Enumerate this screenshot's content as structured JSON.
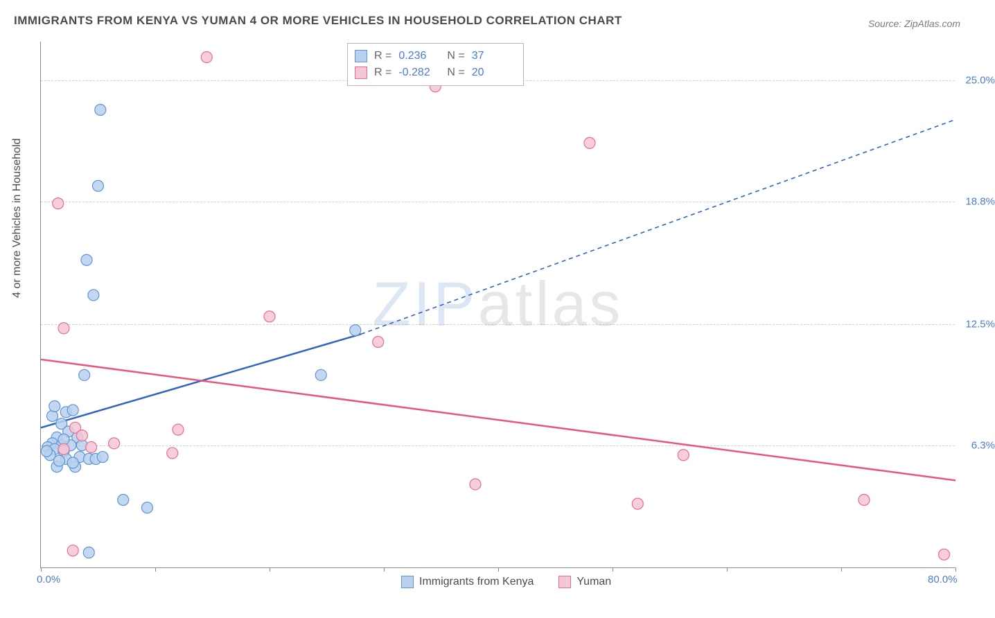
{
  "title": "IMMIGRANTS FROM KENYA VS YUMAN 4 OR MORE VEHICLES IN HOUSEHOLD CORRELATION CHART",
  "source": "Source: ZipAtlas.com",
  "y_axis_title": "4 or more Vehicles in Household",
  "watermark_a": "ZIP",
  "watermark_b": "atlas",
  "chart": {
    "type": "scatter",
    "background_color": "#ffffff",
    "grid_color": "#cfcfcf",
    "axis_color": "#888888",
    "label_color": "#4b7bd6",
    "title_color": "#4a4a4a",
    "title_fontsize": 17,
    "axis_fontsize": 15,
    "xlim": [
      0,
      80
    ],
    "ylim": [
      0,
      27
    ],
    "x_ticks": [
      0,
      10,
      20,
      30,
      40,
      50,
      60,
      70,
      80
    ],
    "x_tick_labels": {
      "0": "0.0%",
      "80": "80.0%"
    },
    "y_ticks": [
      6.3,
      12.5,
      18.8,
      25.0
    ],
    "y_tick_labels": [
      "6.3%",
      "12.5%",
      "18.8%",
      "25.0%"
    ],
    "point_radius": 8,
    "point_stroke_width": 1.2,
    "line_width": 2.5,
    "dash_pattern": "6 5",
    "series": [
      {
        "name": "Immigrants from Kenya",
        "fill": "#b9d1ed",
        "stroke": "#5c94d6",
        "line_color": "#2f64c2",
        "R": "0.236",
        "N": "37",
        "trend_solid": {
          "x1": 0,
          "y1": 7.2,
          "x2": 28,
          "y2": 12.0
        },
        "trend_dashed": {
          "x1": 28,
          "y1": 12.0,
          "x2": 80,
          "y2": 23.0
        },
        "points": [
          {
            "x": 5.2,
            "y": 23.5
          },
          {
            "x": 5.0,
            "y": 19.6
          },
          {
            "x": 4.0,
            "y": 15.8
          },
          {
            "x": 4.6,
            "y": 14.0
          },
          {
            "x": 3.8,
            "y": 9.9
          },
          {
            "x": 27.5,
            "y": 12.2
          },
          {
            "x": 24.5,
            "y": 9.9
          },
          {
            "x": 2.2,
            "y": 8.0
          },
          {
            "x": 2.8,
            "y": 8.1
          },
          {
            "x": 1.8,
            "y": 7.4
          },
          {
            "x": 2.4,
            "y": 7.0
          },
          {
            "x": 1.4,
            "y": 6.7
          },
          {
            "x": 3.2,
            "y": 6.7
          },
          {
            "x": 1.0,
            "y": 6.4
          },
          {
            "x": 1.8,
            "y": 6.3
          },
          {
            "x": 2.6,
            "y": 6.3
          },
          {
            "x": 0.6,
            "y": 6.2
          },
          {
            "x": 1.2,
            "y": 6.1
          },
          {
            "x": 2.0,
            "y": 6.0
          },
          {
            "x": 2.2,
            "y": 5.6
          },
          {
            "x": 3.4,
            "y": 5.7
          },
          {
            "x": 4.2,
            "y": 5.6
          },
          {
            "x": 1.4,
            "y": 5.2
          },
          {
            "x": 3.0,
            "y": 5.2
          },
          {
            "x": 7.2,
            "y": 3.5
          },
          {
            "x": 9.3,
            "y": 3.1
          },
          {
            "x": 4.2,
            "y": 0.8
          },
          {
            "x": 1.0,
            "y": 7.8
          },
          {
            "x": 0.8,
            "y": 5.8
          },
          {
            "x": 1.6,
            "y": 5.5
          },
          {
            "x": 2.8,
            "y": 5.4
          },
          {
            "x": 3.6,
            "y": 6.3
          },
          {
            "x": 4.8,
            "y": 5.6
          },
          {
            "x": 0.5,
            "y": 6.0
          },
          {
            "x": 1.2,
            "y": 8.3
          },
          {
            "x": 5.4,
            "y": 5.7
          },
          {
            "x": 2.0,
            "y": 6.6
          }
        ]
      },
      {
        "name": "Yuman",
        "fill": "#f4c7d4",
        "stroke": "#e46d91",
        "line_color": "#e65681",
        "R": "-0.282",
        "N": "20",
        "trend_solid": {
          "x1": 0,
          "y1": 10.7,
          "x2": 80,
          "y2": 4.5
        },
        "trend_dashed": null,
        "points": [
          {
            "x": 14.5,
            "y": 26.2
          },
          {
            "x": 34.5,
            "y": 24.7
          },
          {
            "x": 48.0,
            "y": 21.8
          },
          {
            "x": 1.5,
            "y": 18.7
          },
          {
            "x": 20.0,
            "y": 12.9
          },
          {
            "x": 2.0,
            "y": 12.3
          },
          {
            "x": 29.5,
            "y": 11.6
          },
          {
            "x": 12.0,
            "y": 7.1
          },
          {
            "x": 11.5,
            "y": 5.9
          },
          {
            "x": 3.0,
            "y": 7.2
          },
          {
            "x": 3.6,
            "y": 6.8
          },
          {
            "x": 4.4,
            "y": 6.2
          },
          {
            "x": 6.4,
            "y": 6.4
          },
          {
            "x": 38.0,
            "y": 4.3
          },
          {
            "x": 52.2,
            "y": 3.3
          },
          {
            "x": 56.2,
            "y": 5.8
          },
          {
            "x": 72.0,
            "y": 3.5
          },
          {
            "x": 79.0,
            "y": 0.7
          },
          {
            "x": 2.8,
            "y": 0.9
          },
          {
            "x": 2.0,
            "y": 6.1
          }
        ]
      }
    ]
  },
  "legend_labels": {
    "r_prefix": "R =",
    "n_prefix": "N ="
  }
}
